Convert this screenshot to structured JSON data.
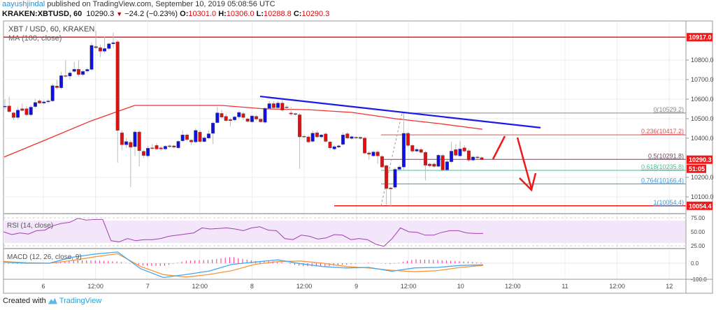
{
  "header": {
    "author": "aayushjindal",
    "published": "published on TradingView.com, September 10, 2019 05:08:56 UTC",
    "symbol": "KRAKEN:XBTUSD, 60",
    "last": "10290.3",
    "change": "−24.2 (−0.23%)",
    "o_label": "O:",
    "o": "10301.0",
    "h_label": "H:",
    "h": "10306.0",
    "l_label": "L:",
    "l": "10288.8",
    "c_label": "C:",
    "c": "10290.3"
  },
  "footer": {
    "created": "Created with",
    "brand": "TradingView"
  },
  "chart_data": {
    "type": "candlestick",
    "title": "XBT / USD, 60, KRAKEN",
    "indicator_label": "MA (100, close)",
    "interval": "60",
    "ylim": [
      10030,
      10960
    ],
    "y_ticks": [
      "10800.0",
      "10700.0",
      "10600.0",
      "10500.0",
      "10400.0",
      "10200.0",
      "10100.0"
    ],
    "x_ticks": [
      "6",
      "12:00",
      "7",
      "12:00",
      "8",
      "12:00",
      "9",
      "12:00",
      "10",
      "12:00",
      "11",
      "12:00",
      "12"
    ],
    "price_labels": {
      "high_line": "10917.0",
      "last": "10290.3",
      "countdown": "51:05",
      "low_line": "10054.4"
    },
    "colors": {
      "up": "#1010e0",
      "down": "#e01010",
      "ma": "#f23030",
      "trend": "#1a1aee",
      "rsi": "#a040b0",
      "macd": "#40a8f0",
      "signal": "#f7963b",
      "hist": "#f0308a"
    },
    "candles_ohlc": [
      [
        10560,
        10600,
        10548,
        10564
      ],
      [
        10565,
        10612,
        10530,
        10536
      ],
      [
        10530,
        10536,
        10495,
        10506
      ],
      [
        10506,
        10560,
        10495,
        10544
      ],
      [
        10551,
        10580,
        10536,
        10542
      ],
      [
        10551,
        10565,
        10512,
        10520
      ],
      [
        10520,
        10570,
        10512,
        10559
      ],
      [
        10562,
        10600,
        10555,
        10583
      ],
      [
        10591,
        10600,
        10575,
        10580
      ],
      [
        10580,
        10595,
        10574,
        10586
      ],
      [
        10586,
        10600,
        10580,
        10591
      ],
      [
        10591,
        10680,
        10585,
        10669
      ],
      [
        10667,
        10700,
        10650,
        10659
      ],
      [
        10658,
        10740,
        10650,
        10720
      ],
      [
        10720,
        10800,
        10710,
        10718
      ],
      [
        10718,
        10745,
        10700,
        10734
      ],
      [
        10742,
        10790,
        10735,
        10753
      ],
      [
        10753,
        10800,
        10715,
        10726
      ],
      [
        10726,
        10750,
        10718,
        10742
      ],
      [
        10744,
        10760,
        10735,
        10752
      ],
      [
        10752,
        10890,
        10745,
        10875
      ],
      [
        10869,
        10950,
        10855,
        10863
      ],
      [
        10863,
        10880,
        10815,
        10845
      ],
      [
        10845,
        10920,
        10835,
        10859
      ],
      [
        10859,
        10890,
        10850,
        10883
      ],
      [
        10883,
        10940,
        10860,
        10889
      ],
      [
        10893,
        10900,
        10275,
        10440
      ],
      [
        10428,
        10440,
        10340,
        10367
      ],
      [
        10367,
        10400,
        10350,
        10383
      ],
      [
        10379,
        10390,
        10150,
        10354
      ],
      [
        10357,
        10440,
        10310,
        10432
      ],
      [
        10432,
        10440,
        10255,
        10336
      ],
      [
        10333,
        10340,
        10300,
        10312
      ],
      [
        10310,
        10360,
        10300,
        10349
      ],
      [
        10351,
        10370,
        10340,
        10349
      ],
      [
        10363,
        10375,
        10340,
        10345
      ],
      [
        10351,
        10360,
        10335,
        10345
      ],
      [
        10345,
        10365,
        10340,
        10359
      ],
      [
        10361,
        10368,
        10352,
        10357
      ],
      [
        10361,
        10366,
        10348,
        10354
      ],
      [
        10351,
        10390,
        10345,
        10384
      ],
      [
        10387,
        10440,
        10380,
        10417
      ],
      [
        10417,
        10425,
        10385,
        10393
      ],
      [
        10390,
        10395,
        10365,
        10381
      ],
      [
        10381,
        10450,
        10375,
        10440
      ],
      [
        10431,
        10440,
        10375,
        10383
      ],
      [
        10383,
        10410,
        10378,
        10402
      ],
      [
        10401,
        10440,
        10395,
        10423
      ],
      [
        10425,
        10485,
        10370,
        10478
      ],
      [
        10480,
        10560,
        10475,
        10530
      ],
      [
        10527,
        10545,
        10500,
        10508
      ],
      [
        10512,
        10525,
        10485,
        10490
      ],
      [
        10496,
        10505,
        10460,
        10490
      ],
      [
        10494,
        10515,
        10488,
        10509
      ],
      [
        10509,
        10540,
        10500,
        10532
      ],
      [
        10526,
        10535,
        10495,
        10506
      ],
      [
        10499,
        10505,
        10480,
        10486
      ],
      [
        10484,
        10520,
        10478,
        10514
      ],
      [
        10512,
        10520,
        10490,
        10498
      ],
      [
        10498,
        10505,
        10478,
        10484
      ],
      [
        10482,
        10560,
        10475,
        10553
      ],
      [
        10553,
        10590,
        10548,
        10577
      ],
      [
        10577,
        10590,
        10550,
        10556
      ],
      [
        10556,
        10590,
        10550,
        10580
      ],
      [
        10580,
        10595,
        10535,
        10544
      ],
      [
        10560,
        10570,
        10540,
        10556
      ],
      [
        10529,
        10560,
        10515,
        10524
      ],
      [
        10522,
        10530,
        10515,
        10526
      ],
      [
        10520,
        10528,
        10244,
        10407
      ],
      [
        10410,
        10418,
        10400,
        10407
      ],
      [
        10407,
        10415,
        10375,
        10381
      ],
      [
        10384,
        10440,
        10378,
        10426
      ],
      [
        10428,
        10440,
        10400,
        10407
      ],
      [
        10407,
        10422,
        10400,
        10417
      ],
      [
        10422,
        10430,
        10378,
        10384
      ],
      [
        10381,
        10386,
        10340,
        10351
      ],
      [
        10345,
        10365,
        10338,
        10357
      ],
      [
        10355,
        10368,
        10350,
        10361
      ],
      [
        10369,
        10430,
        10362,
        10417
      ],
      [
        10423,
        10432,
        10395,
        10401
      ],
      [
        10399,
        10415,
        10392,
        10408
      ],
      [
        10405,
        10410,
        10396,
        10401
      ],
      [
        10405,
        10410,
        10393,
        10399
      ],
      [
        10401,
        10408,
        10318,
        10324
      ],
      [
        10325,
        10335,
        10290,
        10318
      ],
      [
        10310,
        10338,
        10305,
        10330
      ],
      [
        10330,
        10338,
        10270,
        10310
      ],
      [
        10307,
        10315,
        10247,
        10253
      ],
      [
        10260,
        10266,
        10060,
        10143
      ],
      [
        10146,
        10152,
        10054,
        10141
      ],
      [
        10149,
        10250,
        10140,
        10241
      ],
      [
        10241,
        10262,
        10232,
        10253
      ],
      [
        10253,
        10529,
        10240,
        10425
      ],
      [
        10425,
        10432,
        10355,
        10363
      ],
      [
        10363,
        10370,
        10325,
        10334
      ],
      [
        10334,
        10352,
        10327,
        10343
      ],
      [
        10342,
        10352,
        10320,
        10328
      ],
      [
        10328,
        10335,
        10185,
        10262
      ],
      [
        10268,
        10275,
        10250,
        10259
      ],
      [
        10268,
        10275,
        10248,
        10256
      ],
      [
        10256,
        10320,
        10250,
        10313
      ],
      [
        10312,
        10320,
        10230,
        10238
      ],
      [
        10238,
        10290,
        10232,
        10280
      ],
      [
        10280,
        10382,
        10272,
        10334
      ],
      [
        10342,
        10370,
        10305,
        10313
      ],
      [
        10310,
        10385,
        10304,
        10345
      ],
      [
        10351,
        10365,
        10326,
        10334
      ],
      [
        10336,
        10345,
        10280,
        10288
      ],
      [
        10288,
        10310,
        10282,
        10304
      ],
      [
        10304,
        10310,
        10295,
        10300
      ],
      [
        10301,
        10306,
        10288.8,
        10290.3
      ]
    ],
    "ma100": [
      10304,
      10396,
      10489,
      10568,
      10568,
      10568,
      10550,
      10546,
      10532,
      10500,
      10475,
      10446
    ],
    "horizontal_lines": [
      10917.0,
      10054.4
    ],
    "trendline": {
      "from_price": 10614,
      "to_price": 10454
    },
    "fibonacci": [
      {
        "label": "0(10529.2)",
        "value": 10529.2,
        "color": "#888888"
      },
      {
        "label": "0.236(10417.2)",
        "value": 10417.2,
        "color": "#e05050"
      },
      {
        "label": "0.5(10291.8)",
        "value": 10291.8,
        "color": "#6a4a60"
      },
      {
        "label": "0.618(10235.8)",
        "value": 10235.8,
        "color": "#40c090"
      },
      {
        "label": "0.764(10166.4)",
        "value": 10166.4,
        "color": "#3a9ad6"
      },
      {
        "label": "1(10054.4)",
        "value": 10054.4,
        "color": "#3a9ad6"
      }
    ],
    "rsi": {
      "label": "RSI (14, close)",
      "ticks": [
        "75.00",
        "50.00",
        "25.00"
      ],
      "band": [
        30,
        70
      ],
      "values": [
        50,
        45,
        48,
        46,
        52,
        53,
        61,
        65,
        67,
        74,
        71,
        72,
        72,
        34,
        32,
        38,
        34,
        36,
        36,
        38,
        42,
        44,
        46,
        48,
        57,
        55,
        56,
        57,
        55,
        52,
        57,
        59,
        53,
        52,
        38,
        36,
        44,
        42,
        37,
        39,
        45,
        44,
        36,
        38,
        36,
        28,
        24,
        38,
        57,
        50,
        49,
        44,
        44,
        49,
        52,
        52,
        48,
        47,
        47
      ]
    },
    "macd": {
      "label": "MACD (12, 26, close, 9)",
      "ticks": [
        "0.0",
        "-100.0"
      ],
      "macd": [
        7,
        0,
        0,
        37,
        57,
        70,
        -34,
        -89,
        -70,
        -49,
        -7,
        7,
        21,
        -3,
        -21,
        -30,
        -26,
        -50,
        -29,
        -26,
        -14,
        -10
      ],
      "signal": [
        11,
        3,
        0,
        17,
        40,
        59,
        -20,
        -71,
        -86,
        -70,
        -46,
        -7,
        10,
        14,
        0,
        -21,
        -30,
        -44,
        -53,
        -46,
        -26,
        -14
      ]
    }
  }
}
